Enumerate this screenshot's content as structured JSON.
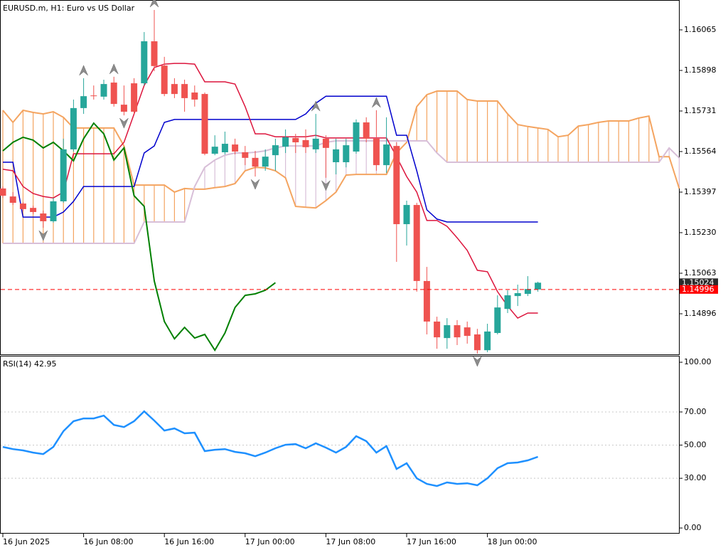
{
  "chart_data": [
    {
      "type": "candlestick",
      "title": "EURUSD.m, H1:  Euro vs US Dollar",
      "categories": [
        "16 Jun 2025",
        null,
        null,
        null,
        null,
        null,
        null,
        null,
        "16 Jun 08:00",
        null,
        null,
        null,
        null,
        null,
        null,
        null,
        "16 Jun 16:00",
        null,
        null,
        null,
        null,
        null,
        null,
        null,
        "17 Jun 00:00",
        null,
        null,
        null,
        null,
        null,
        null,
        null,
        "17 Jun 08:00",
        null,
        null,
        null,
        null,
        null,
        null,
        null,
        "17 Jun 16:00",
        null,
        null,
        null,
        null,
        null,
        null,
        null,
        "18 Jun 00:00",
        null,
        null,
        null,
        null,
        null,
        null,
        null,
        null,
        null,
        null,
        null,
        null,
        null,
        null,
        null,
        null,
        null,
        null,
        null
      ],
      "open": [
        1.15412,
        1.15379,
        1.1535,
        1.15332,
        1.15309,
        1.15277,
        1.15359,
        1.15573,
        1.15743,
        1.15795,
        1.1579,
        1.15848,
        1.15757,
        1.15845,
        1.15845,
        1.16018,
        1.15918,
        1.15842,
        1.15842,
        1.15807,
        1.15801,
        1.15555,
        1.15561,
        1.15593,
        1.15561,
        1.15538,
        1.15502,
        1.15549,
        1.15584,
        1.1562,
        1.15611,
        1.15573,
        1.15617,
        1.1552,
        1.1552,
        1.15564,
        1.15684,
        1.15617,
        1.15508,
        1.15587,
        1.15265,
        1.15344,
        1.15031,
        1.14864,
        1.14796,
        1.14849,
        1.1484,
        1.14811,
        1.14746,
        1.14817,
        1.14916,
        1.14969,
        1.14978,
        1.14996,
        null,
        null,
        null,
        null,
        null,
        null,
        null,
        null,
        null,
        null,
        null,
        null,
        null,
        null
      ],
      "high": [
        1.1542,
        1.15397,
        1.15356,
        1.15341,
        1.15321,
        1.15373,
        1.15617,
        1.15778,
        1.15866,
        1.15836,
        1.1586,
        1.15872,
        1.15836,
        1.15866,
        1.16056,
        1.16147,
        1.15954,
        1.15866,
        1.1586,
        1.15836,
        1.15807,
        1.15631,
        1.15646,
        1.15617,
        1.15587,
        1.15567,
        1.15573,
        1.15617,
        1.15655,
        1.15637,
        1.15655,
        1.15719,
        1.15631,
        1.15617,
        1.15617,
        1.15696,
        1.15705,
        1.15734,
        1.15705,
        1.15602,
        1.15362,
        1.15353,
        1.15089,
        1.14884,
        1.14878,
        1.1487,
        1.14864,
        1.14834,
        1.14855,
        1.14972,
        1.14993,
        1.15016,
        1.15051,
        1.15028,
        null,
        null,
        null,
        null,
        null,
        null,
        null,
        null,
        null,
        null,
        null,
        null,
        null,
        null
      ],
      "low": [
        1.15373,
        1.15344,
        1.15318,
        1.15306,
        1.1525,
        1.15271,
        1.15353,
        1.15564,
        1.15719,
        1.15778,
        1.15778,
        1.15749,
        1.15713,
        1.15719,
        1.15836,
        1.15895,
        1.15792,
        1.15784,
        1.15728,
        1.15749,
        1.15549,
        1.15549,
        1.15552,
        1.15552,
        1.15508,
        1.15461,
        1.15485,
        1.15485,
        1.15558,
        1.15558,
        1.15558,
        1.15558,
        1.15456,
        1.1547,
        1.15499,
        1.15555,
        1.15602,
        1.15485,
        1.15476,
        1.1511,
        1.15177,
        1.14987,
        1.14811,
        1.14752,
        1.14752,
        1.14767,
        1.14773,
        1.14732,
        1.14738,
        1.14811,
        1.14899,
        1.14928,
        1.14969,
        1.14987,
        null,
        null,
        null,
        null,
        null,
        null,
        null,
        null,
        null,
        null,
        null,
        null,
        null,
        null
      ],
      "close": [
        1.15382,
        1.15353,
        1.15327,
        1.15315,
        1.15277,
        1.15359,
        1.15573,
        1.15743,
        1.15792,
        1.15792,
        1.15842,
        1.1576,
        1.15728,
        1.15728,
        1.16018,
        1.15916,
        1.15801,
        1.15801,
        1.15784,
        1.15778,
        1.15555,
        1.15584,
        1.15596,
        1.15564,
        1.15538,
        1.15502,
        1.15543,
        1.1559,
        1.15623,
        1.15602,
        1.15582,
        1.15617,
        1.15579,
        1.15573,
        1.1559,
        1.15684,
        1.15617,
        1.15508,
        1.15593,
        1.15265,
        1.15344,
        1.15031,
        1.14864,
        1.14799,
        1.14849,
        1.14799,
        1.14805,
        1.14746,
        1.14823,
        1.14922,
        1.14972,
        1.14981,
        1.14998,
        1.15024,
        null,
        null,
        null,
        null,
        null,
        null,
        null,
        null,
        null,
        null,
        null,
        null,
        null,
        null
      ],
      "up_color": "#26a69a",
      "down_color": "#ef5350",
      "tenkan": {
        "color": "#dc143c",
        "values": [
          1.15491,
          1.15485,
          1.1542,
          1.15391,
          1.15379,
          1.15373,
          1.15397,
          1.15555,
          1.15555,
          1.15555,
          1.15555,
          1.15555,
          1.15602,
          1.15719,
          1.15836,
          1.1591,
          1.15924,
          1.15927,
          1.15927,
          1.15924,
          1.15851,
          1.15851,
          1.15851,
          1.15842,
          1.15749,
          1.15637,
          1.15637,
          1.15625,
          1.15625,
          1.15625,
          1.15625,
          1.15631,
          1.1562,
          1.1562,
          1.1562,
          1.1562,
          1.1562,
          1.1562,
          1.1562,
          1.15543,
          1.15461,
          1.15397,
          1.1528,
          1.1528,
          1.15256,
          1.15209,
          1.15157,
          1.15075,
          1.15069,
          1.14987,
          1.14928,
          1.14878,
          1.14899,
          1.14899,
          null,
          null,
          null,
          null,
          null,
          null,
          null,
          null,
          null,
          null,
          null,
          null,
          null,
          null
        ]
      },
      "kijun": {
        "color": "#0000cd",
        "values": [
          1.1552,
          1.1552,
          1.15294,
          1.15294,
          1.15294,
          1.15294,
          1.15315,
          1.15359,
          1.1542,
          1.1542,
          1.1542,
          1.1542,
          1.1542,
          1.1542,
          1.15558,
          1.15587,
          1.15684,
          1.15696,
          1.15696,
          1.15696,
          1.15696,
          1.15696,
          1.15696,
          1.15696,
          1.15696,
          1.15696,
          1.15696,
          1.15696,
          1.15696,
          1.15696,
          1.15719,
          1.15763,
          1.15792,
          1.15792,
          1.15792,
          1.15792,
          1.15792,
          1.15792,
          1.15792,
          1.15631,
          1.15631,
          1.15485,
          1.15324,
          1.15286,
          1.15274,
          1.15274,
          1.15274,
          1.15274,
          1.15274,
          1.15274,
          1.15274,
          1.15274,
          1.15274,
          1.15274,
          null,
          null,
          null,
          null,
          null,
          null,
          null,
          null,
          null,
          null,
          null,
          null,
          null,
          null
        ]
      },
      "chikou": {
        "color": "#008000",
        "values": [
          1.15567,
          1.15602,
          1.15623,
          1.15611,
          1.15579,
          1.15602,
          1.15567,
          1.15526,
          1.15617,
          1.15681,
          1.15637,
          1.15529,
          1.15579,
          1.15382,
          1.15338,
          1.15031,
          1.14864,
          1.14793,
          1.1484,
          1.14796,
          1.14811,
          1.14746,
          1.14817,
          1.14922,
          1.14972,
          1.14978,
          1.14993,
          1.15024,
          null,
          null,
          null,
          null,
          null,
          null,
          null,
          null,
          null,
          null,
          null,
          null,
          null,
          null,
          null,
          null,
          null,
          null,
          null,
          null,
          null,
          null,
          null,
          null,
          null,
          null,
          null,
          null,
          null,
          null,
          null,
          null,
          null,
          null,
          null,
          null,
          null,
          null,
          null,
          null
        ]
      },
      "span_a": {
        "color": "#f4a460",
        "values": [
          1.15734,
          1.15684,
          1.15734,
          1.15725,
          1.15719,
          1.15728,
          1.15705,
          1.15661,
          1.15661,
          1.15661,
          1.15661,
          1.15661,
          1.15587,
          1.15426,
          1.15426,
          1.15426,
          1.15426,
          1.15397,
          1.15412,
          1.15409,
          1.15409,
          1.15415,
          1.1542,
          1.15432,
          1.15485,
          1.15499,
          1.15497,
          1.15485,
          1.15456,
          1.15338,
          1.15335,
          1.15332,
          1.15362,
          1.15397,
          1.15467,
          1.1547,
          1.1547,
          1.1547,
          1.1547,
          1.15558,
          1.15602,
          1.15749,
          1.15798,
          1.15813,
          1.15813,
          1.15813,
          1.15778,
          1.15772,
          1.15772,
          1.15772,
          1.15719,
          1.15675,
          1.15667,
          1.15661,
          1.15655,
          1.15625,
          1.15631,
          1.15669,
          1.15675,
          1.15684,
          1.1569,
          1.1569,
          1.1569,
          1.15702,
          1.1571,
          1.15543,
          1.15543,
          1.15412
        ]
      },
      "span_b": {
        "color": "#d8bfd8",
        "values": [
          1.15186,
          1.15186,
          1.15186,
          1.15186,
          1.15186,
          1.15186,
          1.15186,
          1.15186,
          1.15186,
          1.15186,
          1.15186,
          1.15186,
          1.15186,
          1.15186,
          1.15274,
          1.15274,
          1.15274,
          1.15274,
          1.15274,
          1.1542,
          1.15499,
          1.15529,
          1.15549,
          1.15558,
          1.15558,
          1.15561,
          1.15567,
          1.15579,
          1.15587,
          1.15587,
          1.15587,
          1.15587,
          1.15602,
          1.15608,
          1.15608,
          1.15608,
          1.15608,
          1.15608,
          1.15608,
          1.15608,
          1.15608,
          1.15608,
          1.15608,
          1.15558,
          1.1552,
          1.1552,
          1.1552,
          1.1552,
          1.1552,
          1.1552,
          1.1552,
          1.1552,
          1.1552,
          1.1552,
          1.1552,
          1.1552,
          1.1552,
          1.1552,
          1.1552,
          1.1552,
          1.1552,
          1.1552,
          1.1552,
          1.1552,
          1.1552,
          1.1552,
          1.15579,
          1.15538
        ]
      },
      "fractals": {
        "color": "#8c8c8c",
        "up": [
          null,
          null,
          null,
          null,
          null,
          null,
          null,
          null,
          1.15866,
          null,
          null,
          1.15872,
          null,
          null,
          null,
          1.16147,
          null,
          null,
          null,
          null,
          null,
          null,
          null,
          null,
          null,
          null,
          null,
          null,
          null,
          null,
          null,
          1.15719,
          null,
          null,
          null,
          null,
          null,
          1.15734,
          null,
          null,
          null,
          null,
          null,
          null,
          null,
          null,
          null,
          null,
          null,
          null,
          null,
          null,
          null,
          null,
          null,
          null,
          null,
          null,
          null,
          null,
          null,
          null,
          null,
          null,
          null,
          null,
          null,
          null
        ],
        "down": [
          null,
          null,
          null,
          null,
          1.1525,
          null,
          null,
          null,
          null,
          null,
          null,
          null,
          1.15713,
          null,
          null,
          null,
          null,
          null,
          null,
          null,
          null,
          null,
          null,
          null,
          null,
          1.15461,
          null,
          null,
          null,
          null,
          null,
          null,
          1.15456,
          null,
          null,
          null,
          null,
          null,
          null,
          null,
          null,
          null,
          null,
          null,
          null,
          null,
          null,
          1.14732,
          null,
          null,
          null,
          null,
          null,
          null,
          null,
          null,
          null,
          null,
          null,
          null,
          null,
          null,
          null,
          null,
          null,
          null,
          null,
          null
        ]
      },
      "price_labels": [
        {
          "value": 1.15024,
          "color": "#2b2b2b"
        },
        {
          "value": 1.14996,
          "color": "#ff0000",
          "dashed": true
        }
      ],
      "ylim": [
        1.14729,
        1.16188
      ],
      "yticks": [
        1.16065,
        1.15898,
        1.15731,
        1.15564,
        1.15397,
        {
          "value": 1.1523,
          "label": "1.15230"
        },
        1.15063,
        1.14896
      ]
    },
    {
      "type": "line",
      "title": "RSI(14) 42.95",
      "color": "#1e90ff",
      "values": [
        48.9,
        47.6,
        46.8,
        45.5,
        44.6,
        48.9,
        58.4,
        64.4,
        66.1,
        66.1,
        67.8,
        62.2,
        60.9,
        64.4,
        70.4,
        64.8,
        58.8,
        60.1,
        57.1,
        57.5,
        46.4,
        47.2,
        47.6,
        45.9,
        45.1,
        43.3,
        45.5,
        48.1,
        50.2,
        50.6,
        48.1,
        51.1,
        48.5,
        45.5,
        48.9,
        55.4,
        52.4,
        45.5,
        49.4,
        35.6,
        39.1,
        30.0,
        26.6,
        25.3,
        27.5,
        26.6,
        27.0,
        25.8,
        30.0,
        36.1,
        39.1,
        39.5,
        40.8,
        42.95,
        null,
        null,
        null,
        null,
        null,
        null,
        null,
        null,
        null,
        null,
        null,
        null,
        null,
        null
      ],
      "ylim": [
        -3.4,
        103.9
      ],
      "yticks": [
        {
          "value": 100,
          "label": "100.00"
        },
        {
          "value": 70,
          "label": "70.00"
        },
        {
          "value": 50,
          "label": "50.00"
        },
        {
          "value": 30,
          "label": "30.00"
        },
        {
          "value": 0,
          "label": "0.00"
        }
      ],
      "levels": [
        70,
        50,
        30
      ]
    }
  ]
}
